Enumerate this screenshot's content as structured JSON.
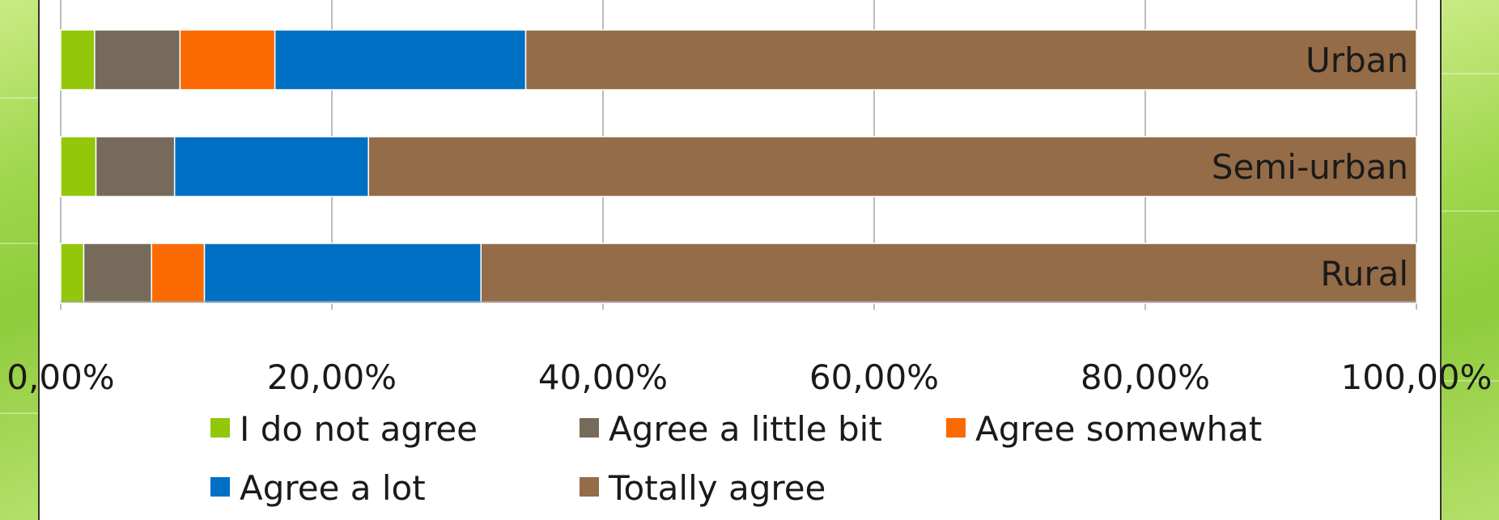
{
  "chart_data": {
    "type": "bar",
    "orientation": "horizontal",
    "stacked": "percent",
    "categories": [
      "Urban",
      "Semi-urban",
      "Rural"
    ],
    "x_ticks": [
      "0,00%",
      "20,00%",
      "40,00%",
      "60,00%",
      "80,00%",
      "100,00%"
    ],
    "xlim": [
      0,
      100
    ],
    "grid": true,
    "legend_position": "bottom",
    "series": [
      {
        "name": "I do not agree",
        "color": "#92c70a",
        "values": [
          2.5,
          2.6,
          1.7
        ]
      },
      {
        "name": "Agree a little bit",
        "color": "#766a5a",
        "values": [
          6.3,
          5.8,
          5.0
        ]
      },
      {
        "name": "Agree somewhat",
        "color": "#fb6a02",
        "values": [
          7.0,
          0.0,
          3.9
        ]
      },
      {
        "name": "Agree a lot",
        "color": "#0070c5",
        "values": [
          18.5,
          14.3,
          20.4
        ]
      },
      {
        "name": "Totally agree",
        "color": "#946c48",
        "values": [
          65.7,
          77.3,
          69.0
        ]
      }
    ]
  },
  "colors": {
    "gridline": "#a6a6a6",
    "axis": "#a6a6a6",
    "side_panel": "#9fd64c"
  }
}
